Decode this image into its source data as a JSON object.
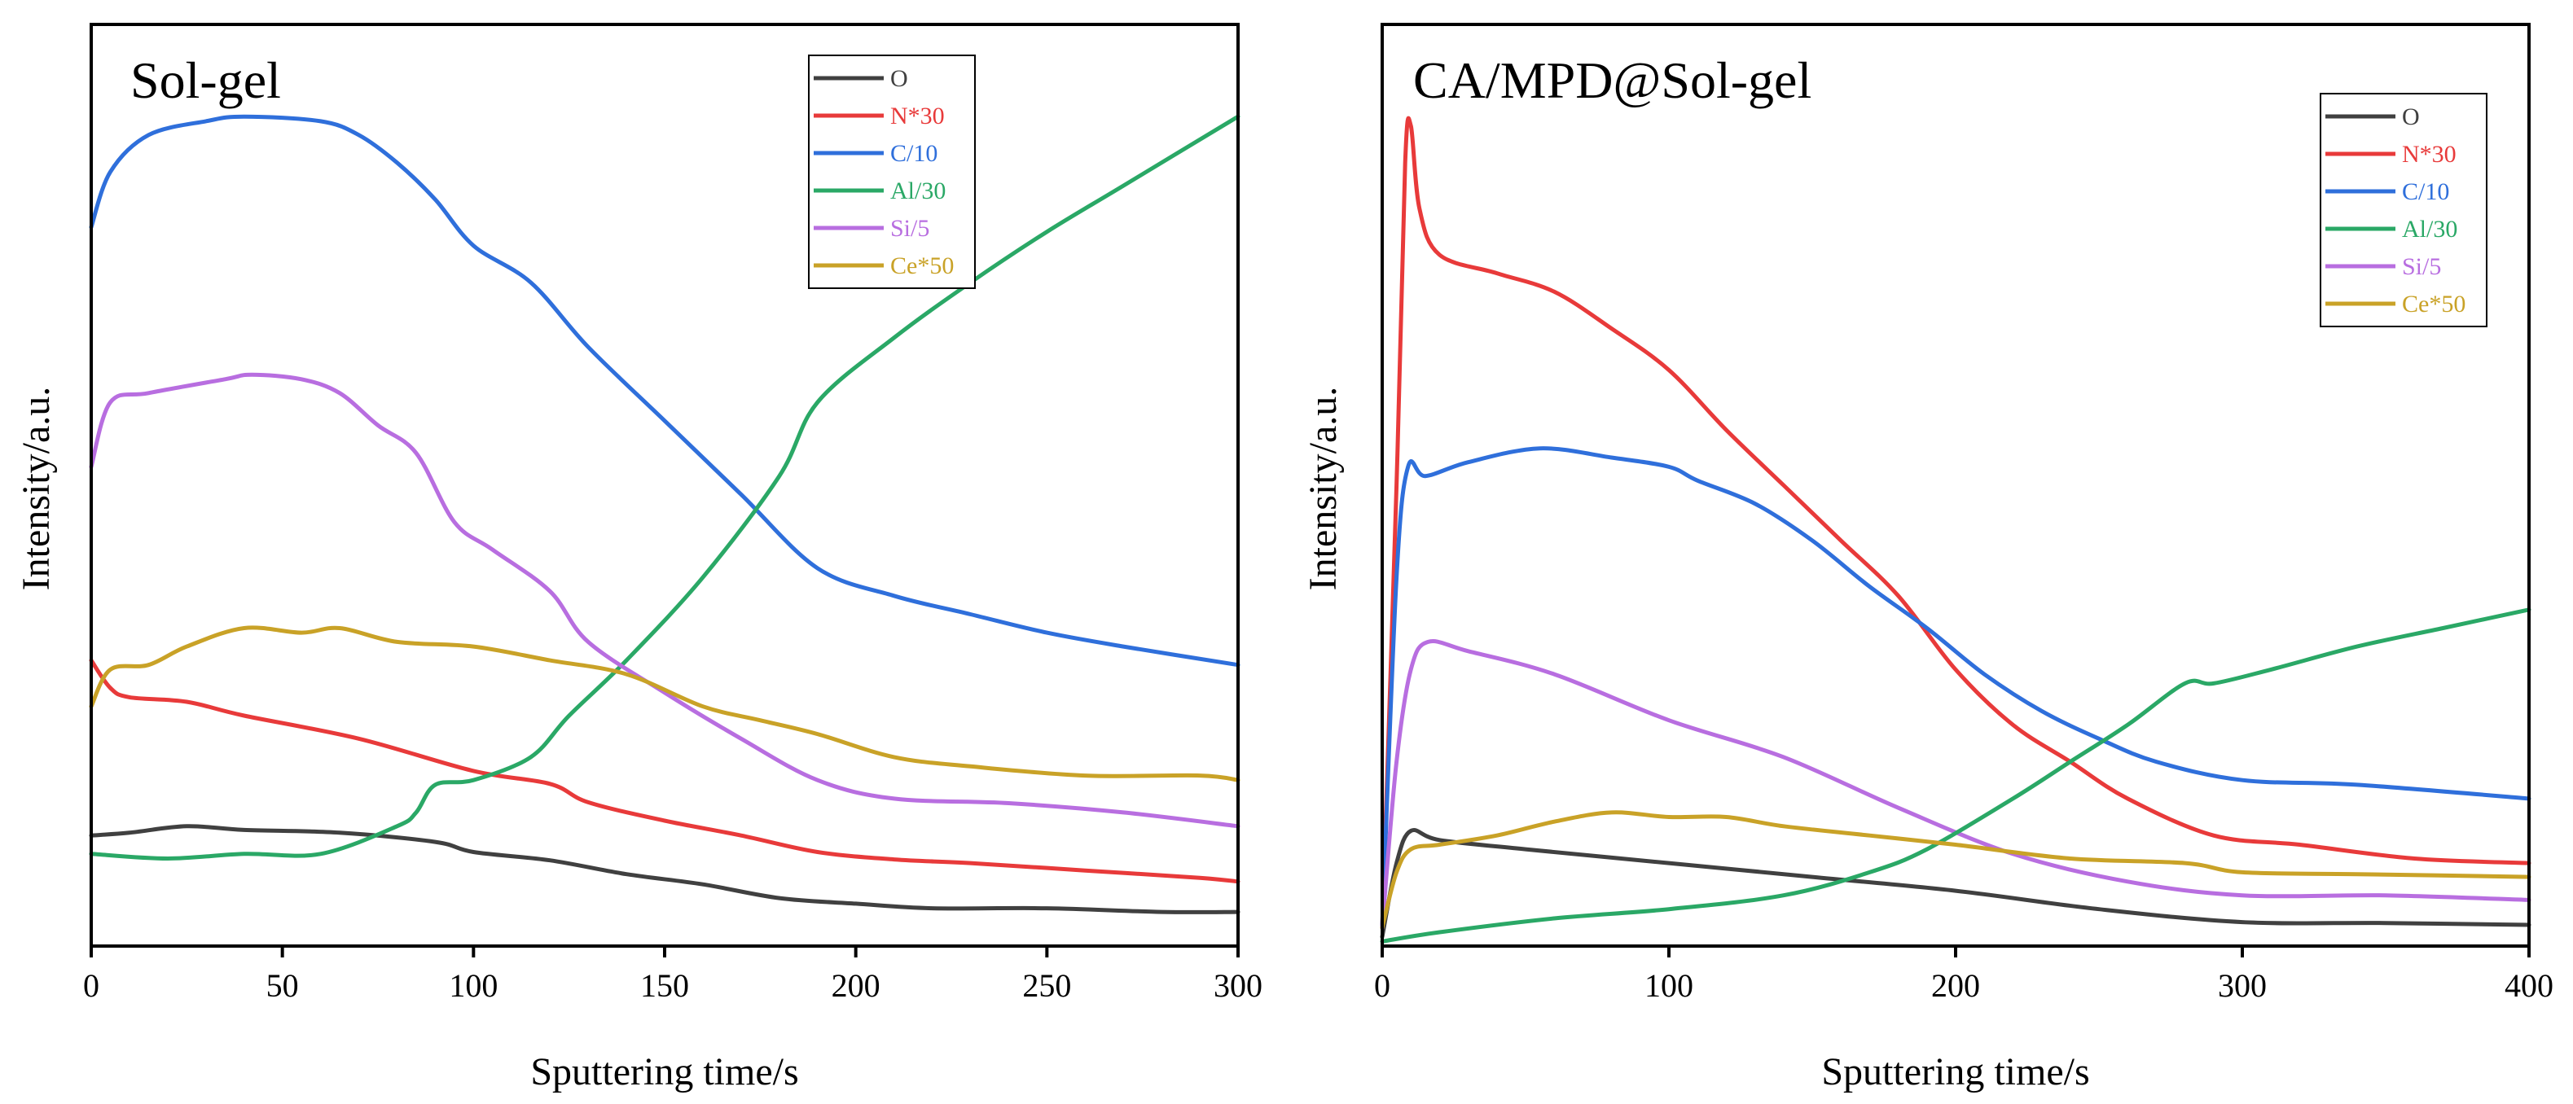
{
  "chart_data": [
    {
      "type": "line",
      "title": "Sol-gel",
      "xlabel": "Sputtering time/s",
      "ylabel": "Intensity/a.u.",
      "xlim": [
        0,
        300
      ],
      "ylim": [
        0,
        100
      ],
      "xticks": [
        0,
        50,
        100,
        150,
        200,
        250,
        300
      ],
      "legend_position": "top-right",
      "series": [
        {
          "name": "O",
          "color": "#404040",
          "x": [
            0,
            10,
            25,
            40,
            65,
            90,
            100,
            120,
            140,
            160,
            180,
            200,
            220,
            250,
            280,
            300
          ],
          "y": [
            12,
            12.3,
            13,
            12.6,
            12.3,
            11.3,
            10.2,
            9.3,
            7.8,
            6.7,
            5.2,
            4.6,
            4.1,
            4.1,
            3.7,
            3.7
          ]
        },
        {
          "name": "N*30",
          "color": "#e83a3a",
          "x": [
            0,
            5,
            10,
            25,
            40,
            70,
            100,
            120,
            130,
            150,
            170,
            190,
            210,
            230,
            260,
            290,
            300
          ],
          "y": [
            31,
            28,
            27,
            26.5,
            25,
            22.5,
            19,
            17.6,
            15.6,
            13.6,
            12,
            10.2,
            9.4,
            9,
            8.2,
            7.4,
            7
          ]
        },
        {
          "name": "C/10",
          "color": "#2f6fdb",
          "x": [
            0,
            5,
            15,
            30,
            40,
            60,
            70,
            80,
            90,
            100,
            115,
            130,
            150,
            170,
            190,
            210,
            230,
            250,
            270,
            300
          ],
          "y": [
            78,
            84,
            88,
            89.5,
            90,
            89.5,
            88,
            85,
            81,
            76,
            72,
            65,
            57,
            49,
            41,
            38,
            36,
            34,
            32.5,
            30.5
          ]
        },
        {
          "name": "Al/30",
          "color": "#2aa866",
          "x": [
            0,
            20,
            40,
            60,
            80,
            85,
            90,
            100,
            115,
            125,
            140,
            160,
            180,
            190,
            210,
            230,
            250,
            270,
            300
          ],
          "y": [
            10,
            9.5,
            10,
            10,
            13,
            14.5,
            17.5,
            18,
            20.5,
            25,
            31,
            40,
            51,
            59,
            66,
            72,
            77.5,
            82.5,
            90
          ]
        },
        {
          "name": "Si/5",
          "color": "#b86ee0",
          "x": [
            0,
            5,
            15,
            35,
            42,
            55,
            65,
            75,
            85,
            95,
            105,
            120,
            130,
            150,
            170,
            190,
            210,
            240,
            270,
            300
          ],
          "y": [
            52,
            59,
            60,
            61.5,
            62,
            61.5,
            60,
            56.5,
            53.5,
            46,
            43,
            38.5,
            33,
            27.5,
            22.5,
            18,
            16,
            15.5,
            14.5,
            13
          ]
        },
        {
          "name": "Ce*50",
          "color": "#c9a227",
          "x": [
            0,
            5,
            15,
            25,
            40,
            55,
            65,
            80,
            100,
            120,
            140,
            160,
            175,
            190,
            210,
            230,
            260,
            290,
            300
          ],
          "y": [
            26,
            30,
            30.5,
            32.5,
            34.5,
            34,
            34.5,
            33,
            32.5,
            31,
            29.5,
            26,
            24.5,
            23,
            20.5,
            19.5,
            18.5,
            18.5,
            18
          ]
        }
      ]
    },
    {
      "type": "line",
      "title": "CA/MPD@Sol-gel",
      "xlabel": "Sputtering time/s",
      "ylabel": "Intensity/a.u.",
      "xlim": [
        0,
        400
      ],
      "ylim": [
        0,
        100
      ],
      "xticks": [
        0,
        100,
        200,
        300,
        400
      ],
      "legend_position": "top-right",
      "series": [
        {
          "name": "O",
          "color": "#404040",
          "x": [
            0,
            5,
            10,
            20,
            50,
            100,
            150,
            200,
            250,
            300,
            350,
            400
          ],
          "y": [
            1,
            9,
            12.5,
            11.5,
            10.5,
            9,
            7.5,
            6,
            4,
            2.6,
            2.5,
            2.3
          ]
        },
        {
          "name": "N*30",
          "color": "#e83a3a",
          "x": [
            0,
            5,
            8,
            10,
            13,
            20,
            40,
            60,
            80,
            100,
            120,
            140,
            160,
            180,
            200,
            220,
            240,
            260,
            290,
            320,
            360,
            400
          ],
          "y": [
            2,
            50,
            85,
            89,
            80,
            75,
            73,
            71,
            67,
            62.5,
            56,
            50,
            44,
            38,
            30,
            24,
            20,
            16,
            12,
            11,
            9.5,
            9
          ]
        },
        {
          "name": "C/10",
          "color": "#2f6fdb",
          "x": [
            0,
            5,
            9,
            15,
            30,
            55,
            80,
            100,
            110,
            130,
            150,
            170,
            190,
            210,
            230,
            250,
            270,
            300,
            340,
            400
          ],
          "y": [
            2,
            40,
            52,
            51,
            52.5,
            54,
            53,
            52,
            50.5,
            48,
            44,
            39,
            34.5,
            29.5,
            25.5,
            22.5,
            20,
            18,
            17.5,
            16
          ]
        },
        {
          "name": "Si/5",
          "color": "#b86ee0",
          "x": [
            0,
            5,
            10,
            16,
            30,
            60,
            100,
            140,
            180,
            220,
            260,
            300,
            350,
            400
          ],
          "y": [
            2,
            20,
            30,
            33,
            32,
            29.5,
            24.5,
            20.5,
            15,
            10,
            7,
            5.5,
            5.5,
            5
          ]
        },
        {
          "name": "Al/30",
          "color": "#2aa866",
          "x": [
            0,
            20,
            60,
            100,
            140,
            170,
            190,
            220,
            240,
            260,
            280,
            290,
            310,
            340,
            370,
            400
          ],
          "y": [
            0.5,
            1.5,
            3,
            4,
            5.5,
            8,
            10.5,
            16,
            20,
            24,
            28.5,
            28.5,
            30,
            32.5,
            34.5,
            36.5
          ]
        },
        {
          "name": "Ce*50",
          "color": "#c9a227",
          "x": [
            0,
            5,
            10,
            20,
            40,
            60,
            80,
            100,
            120,
            140,
            170,
            200,
            240,
            280,
            300,
            340,
            400
          ],
          "y": [
            2,
            8,
            10.5,
            11,
            12,
            13.5,
            14.5,
            14,
            14,
            13,
            12,
            11,
            9.5,
            9,
            8,
            7.8,
            7.5
          ]
        }
      ]
    }
  ]
}
